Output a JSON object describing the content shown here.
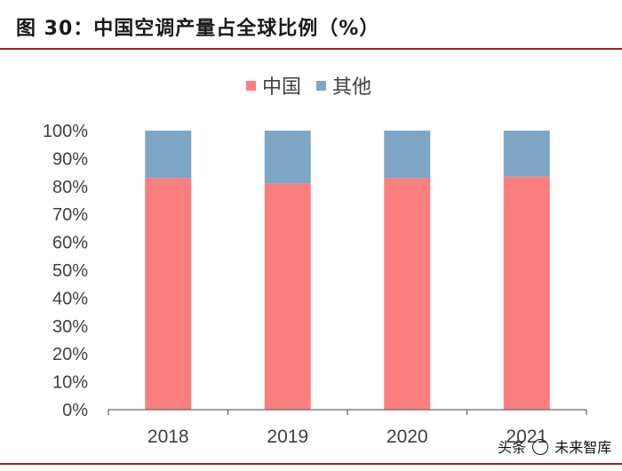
{
  "chart_data": {
    "type": "bar",
    "stacked": true,
    "title": "图 30：中国空调产量占全球比例（%）",
    "categories": [
      "2018",
      "2019",
      "2020",
      "2021"
    ],
    "series": [
      {
        "name": "中国",
        "values": [
          83,
          81,
          83,
          83.5
        ],
        "color": "#fb7f7f"
      },
      {
        "name": "其他",
        "values": [
          17,
          19,
          17,
          16.5
        ],
        "color": "#7ea6c6"
      }
    ],
    "yticks": [
      "0%",
      "10%",
      "20%",
      "30%",
      "40%",
      "50%",
      "60%",
      "70%",
      "80%",
      "90%",
      "100%"
    ],
    "ylim": [
      0,
      100
    ],
    "xlabel": "",
    "ylabel": "",
    "legend_position": "top-center",
    "grid": false
  },
  "accent_color": "#a51c1c",
  "watermark": {
    "prefix": "头条",
    "name": "未来智库"
  }
}
